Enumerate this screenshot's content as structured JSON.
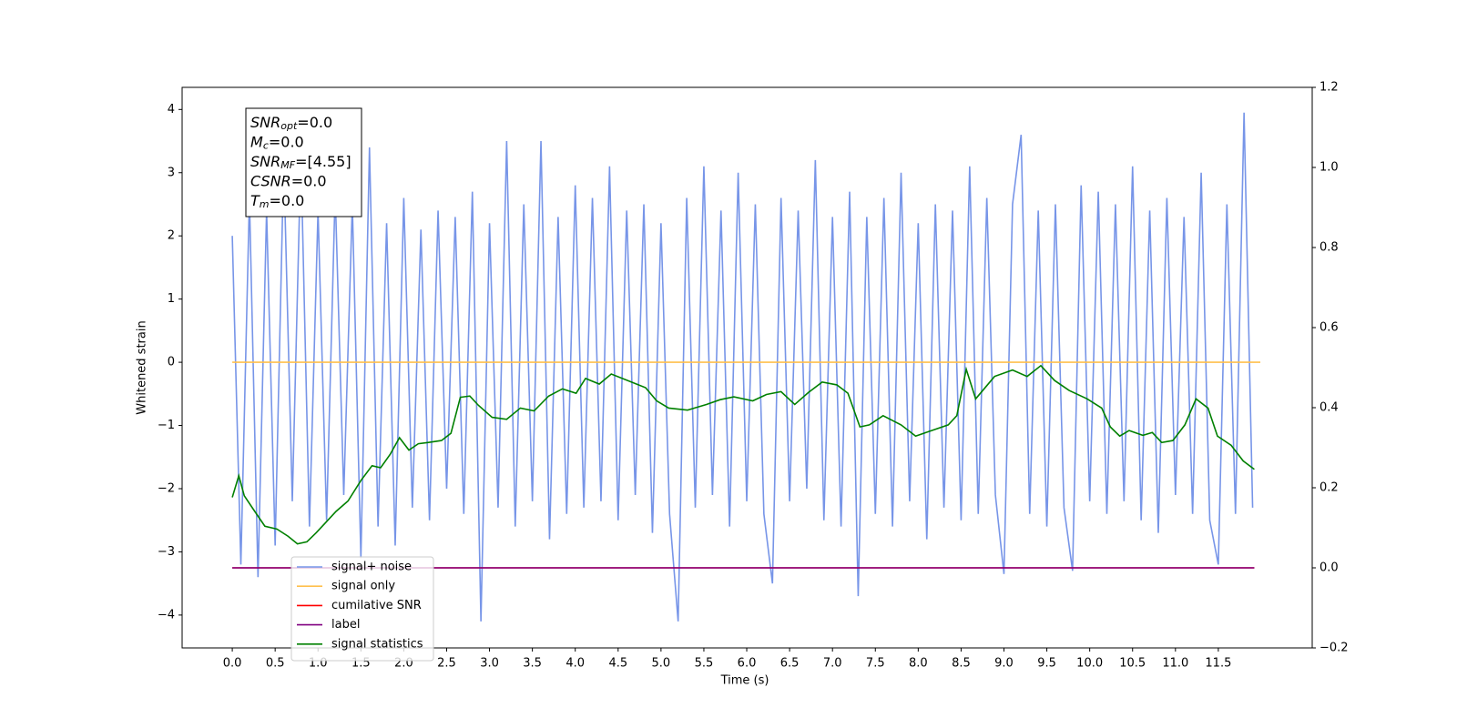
{
  "chart_data": {
    "type": "line",
    "xlabel": "Time (s)",
    "ylabel": "Whitened strain",
    "xlim": [
      -0.585,
      12.595
    ],
    "ylim": [
      -4.52,
      4.35
    ],
    "y2lim": [
      -0.2,
      1.2
    ],
    "xticks": [
      {
        "value": 0,
        "label": "0.0"
      },
      0.5,
      {
        "value": 1,
        "label": "1.0"
      },
      1.5,
      {
        "value": 2,
        "label": "2.0"
      },
      2.5,
      {
        "value": 3,
        "label": "3.0"
      },
      3.5,
      {
        "value": 4,
        "label": "4.0"
      },
      4.5,
      {
        "value": 5,
        "label": "5.0"
      },
      5.5,
      {
        "value": 6,
        "label": "6.0"
      },
      6.5,
      {
        "value": 7,
        "label": "7.0"
      },
      7.5,
      {
        "value": 8,
        "label": "8.0"
      },
      8.5,
      {
        "value": 9,
        "label": "9.0"
      },
      9.5,
      {
        "value": 10,
        "label": "10.0"
      },
      10.5,
      {
        "value": 11,
        "label": "11.0"
      },
      11.5
    ],
    "yticks": [
      {
        "value": -4,
        "label": "−4"
      },
      {
        "value": -3,
        "label": "−3"
      },
      {
        "value": -2,
        "label": "−2"
      },
      {
        "value": -1,
        "label": "−1"
      },
      0,
      1,
      2,
      3,
      4
    ],
    "y2ticks": [
      {
        "value": -0.2,
        "label": "−0.2"
      },
      {
        "value": 0,
        "label": "0.0"
      },
      0.2,
      0.4,
      0.6,
      0.8,
      {
        "value": 1,
        "label": "1.0"
      },
      1.2
    ],
    "grid": false,
    "annotation": [
      {
        "base": "SNR",
        "sub": "opt",
        "text": "=0.0"
      },
      {
        "base": "M",
        "sub": "c",
        "text": "=0.0"
      },
      {
        "base": "SNR",
        "sub": "MF",
        "text": "=[4.55]"
      },
      {
        "base": "CSNR",
        "text": "=0.0"
      },
      {
        "base": "T",
        "sub": "m",
        "text": "=0.0"
      }
    ],
    "series": [
      {
        "name": "signal+ noise",
        "color": "#7795e8",
        "x": [
          0,
          0.1,
          0.2,
          0.3,
          0.4,
          0.5,
          0.6,
          0.7,
          0.8,
          0.9,
          1,
          1.1,
          1.2,
          1.3,
          1.4,
          1.5,
          1.6,
          1.7,
          1.8,
          1.9,
          2,
          2.1,
          2.2,
          2.3,
          2.4,
          2.5,
          2.6,
          2.7,
          2.8,
          2.9,
          3,
          3.1,
          3.2,
          3.3,
          3.4,
          3.5,
          3.6,
          3.7,
          3.8,
          3.9,
          4,
          4.1,
          4.2,
          4.3,
          4.4,
          4.5,
          4.6,
          4.7,
          4.8,
          4.9,
          5,
          5.1,
          5.2,
          5.3,
          5.4,
          5.5,
          5.6,
          5.7,
          5.8,
          5.9,
          6,
          6.1,
          6.2,
          6.3,
          6.4,
          6.5,
          6.6,
          6.7,
          6.8,
          6.9,
          7,
          7.1,
          7.2,
          7.3,
          7.4,
          7.5,
          7.6,
          7.7,
          7.8,
          7.9,
          8,
          8.1,
          8.2,
          8.3,
          8.4,
          8.5,
          8.6,
          8.7,
          8.8,
          8.9,
          9,
          9.1,
          9.2,
          9.3,
          9.4,
          9.5,
          9.6,
          9.7,
          9.8,
          9.9,
          10,
          10.1,
          10.2,
          10.3,
          10.4,
          10.5,
          10.6,
          10.7,
          10.8,
          10.9,
          11,
          11.1,
          11.2,
          11.3,
          11.4,
          11.5,
          11.6,
          11.7,
          11.8,
          11.9
        ],
        "values": [
          2.0,
          -3.2,
          2.6,
          -3.4,
          2.4,
          -2.9,
          3.2,
          -2.2,
          3.3,
          -2.6,
          2.4,
          -2.5,
          2.7,
          -2.1,
          2.5,
          -3.1,
          3.4,
          -2.6,
          2.2,
          -2.9,
          2.6,
          -2.3,
          2.1,
          -2.5,
          2.4,
          -2.0,
          2.3,
          -2.4,
          2.7,
          -4.1,
          2.2,
          -2.3,
          3.5,
          -2.6,
          2.5,
          -2.2,
          3.5,
          -2.8,
          2.3,
          -2.4,
          2.8,
          -2.3,
          2.6,
          -2.2,
          3.1,
          -2.5,
          2.4,
          -2.1,
          2.5,
          -2.7,
          2.2,
          -2.4,
          -4.1,
          2.6,
          -2.3,
          3.1,
          -2.1,
          2.4,
          -2.6,
          3.0,
          -2.2,
          2.5,
          -2.4,
          -3.5,
          2.6,
          -2.2,
          2.4,
          -2.0,
          3.2,
          -2.5,
          2.3,
          -2.6,
          2.7,
          -3.7,
          2.3,
          -2.4,
          2.6,
          -2.6,
          3.0,
          -2.2,
          2.2,
          -2.8,
          2.5,
          -2.3,
          2.4,
          -2.5,
          3.1,
          -2.4,
          2.6,
          -2.1,
          -3.35,
          2.5,
          3.6,
          -2.4,
          2.4,
          -2.6,
          2.5,
          -2.3,
          -3.3,
          2.8,
          -2.2,
          2.7,
          -2.4,
          2.5,
          -2.2,
          3.1,
          -2.5,
          2.4,
          -2.7,
          2.6,
          -2.1,
          2.3,
          -2.4,
          3.0,
          -2.5,
          -3.2,
          2.5,
          -2.4,
          3.95,
          -2.3
        ]
      },
      {
        "name": "signal only",
        "color": "#ffc04d",
        "x": [
          0,
          11.99
        ],
        "values": [
          0,
          0
        ]
      },
      {
        "name": "cumilative SNR",
        "color": "#ff0000",
        "axis": "y2",
        "x": [
          0,
          11.92
        ],
        "values": [
          0,
          0
        ]
      },
      {
        "name": "label",
        "color": "#800080",
        "axis": "y2",
        "x": [
          0,
          11.92
        ],
        "values": [
          0,
          0
        ]
      },
      {
        "name": "signal statistics",
        "color": "#008000",
        "axis": "y2",
        "x": [
          0,
          0.076,
          0.14,
          0.24,
          0.38,
          0.52,
          0.65,
          0.76,
          0.87,
          0.98,
          1.08,
          1.21,
          1.35,
          1.5,
          1.63,
          1.73,
          1.84,
          1.95,
          2.06,
          2.17,
          2.28,
          2.44,
          2.55,
          2.66,
          2.77,
          2.87,
          3.03,
          3.2,
          3.36,
          3.52,
          3.69,
          3.85,
          4.01,
          4.12,
          4.28,
          4.42,
          4.61,
          4.82,
          4.95,
          5.09,
          5.31,
          5.53,
          5.69,
          5.85,
          6.07,
          6.23,
          6.4,
          6.56,
          6.72,
          6.88,
          7.05,
          7.18,
          7.32,
          7.43,
          7.59,
          7.8,
          7.97,
          8.13,
          8.35,
          8.45,
          8.56,
          8.67,
          8.89,
          9.1,
          9.27,
          9.43,
          9.59,
          9.76,
          9.97,
          10.14,
          10.24,
          10.35,
          10.46,
          10.62,
          10.73,
          10.84,
          10.97,
          11.11,
          11.24,
          11.38,
          11.49,
          11.65,
          11.79,
          11.92
        ],
        "values": [
          0.176,
          0.23,
          0.18,
          0.148,
          0.104,
          0.097,
          0.079,
          0.06,
          0.065,
          0.088,
          0.111,
          0.141,
          0.167,
          0.218,
          0.255,
          0.25,
          0.283,
          0.325,
          0.294,
          0.31,
          0.313,
          0.318,
          0.336,
          0.426,
          0.429,
          0.406,
          0.376,
          0.371,
          0.399,
          0.392,
          0.429,
          0.447,
          0.436,
          0.473,
          0.459,
          0.484,
          0.468,
          0.45,
          0.417,
          0.399,
          0.394,
          0.408,
          0.42,
          0.427,
          0.417,
          0.433,
          0.44,
          0.408,
          0.438,
          0.464,
          0.457,
          0.436,
          0.352,
          0.357,
          0.38,
          0.357,
          0.329,
          0.341,
          0.357,
          0.38,
          0.496,
          0.422,
          0.478,
          0.494,
          0.478,
          0.505,
          0.468,
          0.443,
          0.422,
          0.399,
          0.352,
          0.329,
          0.343,
          0.331,
          0.338,
          0.313,
          0.318,
          0.357,
          0.422,
          0.399,
          0.329,
          0.306,
          0.267,
          0.246
        ]
      }
    ]
  }
}
